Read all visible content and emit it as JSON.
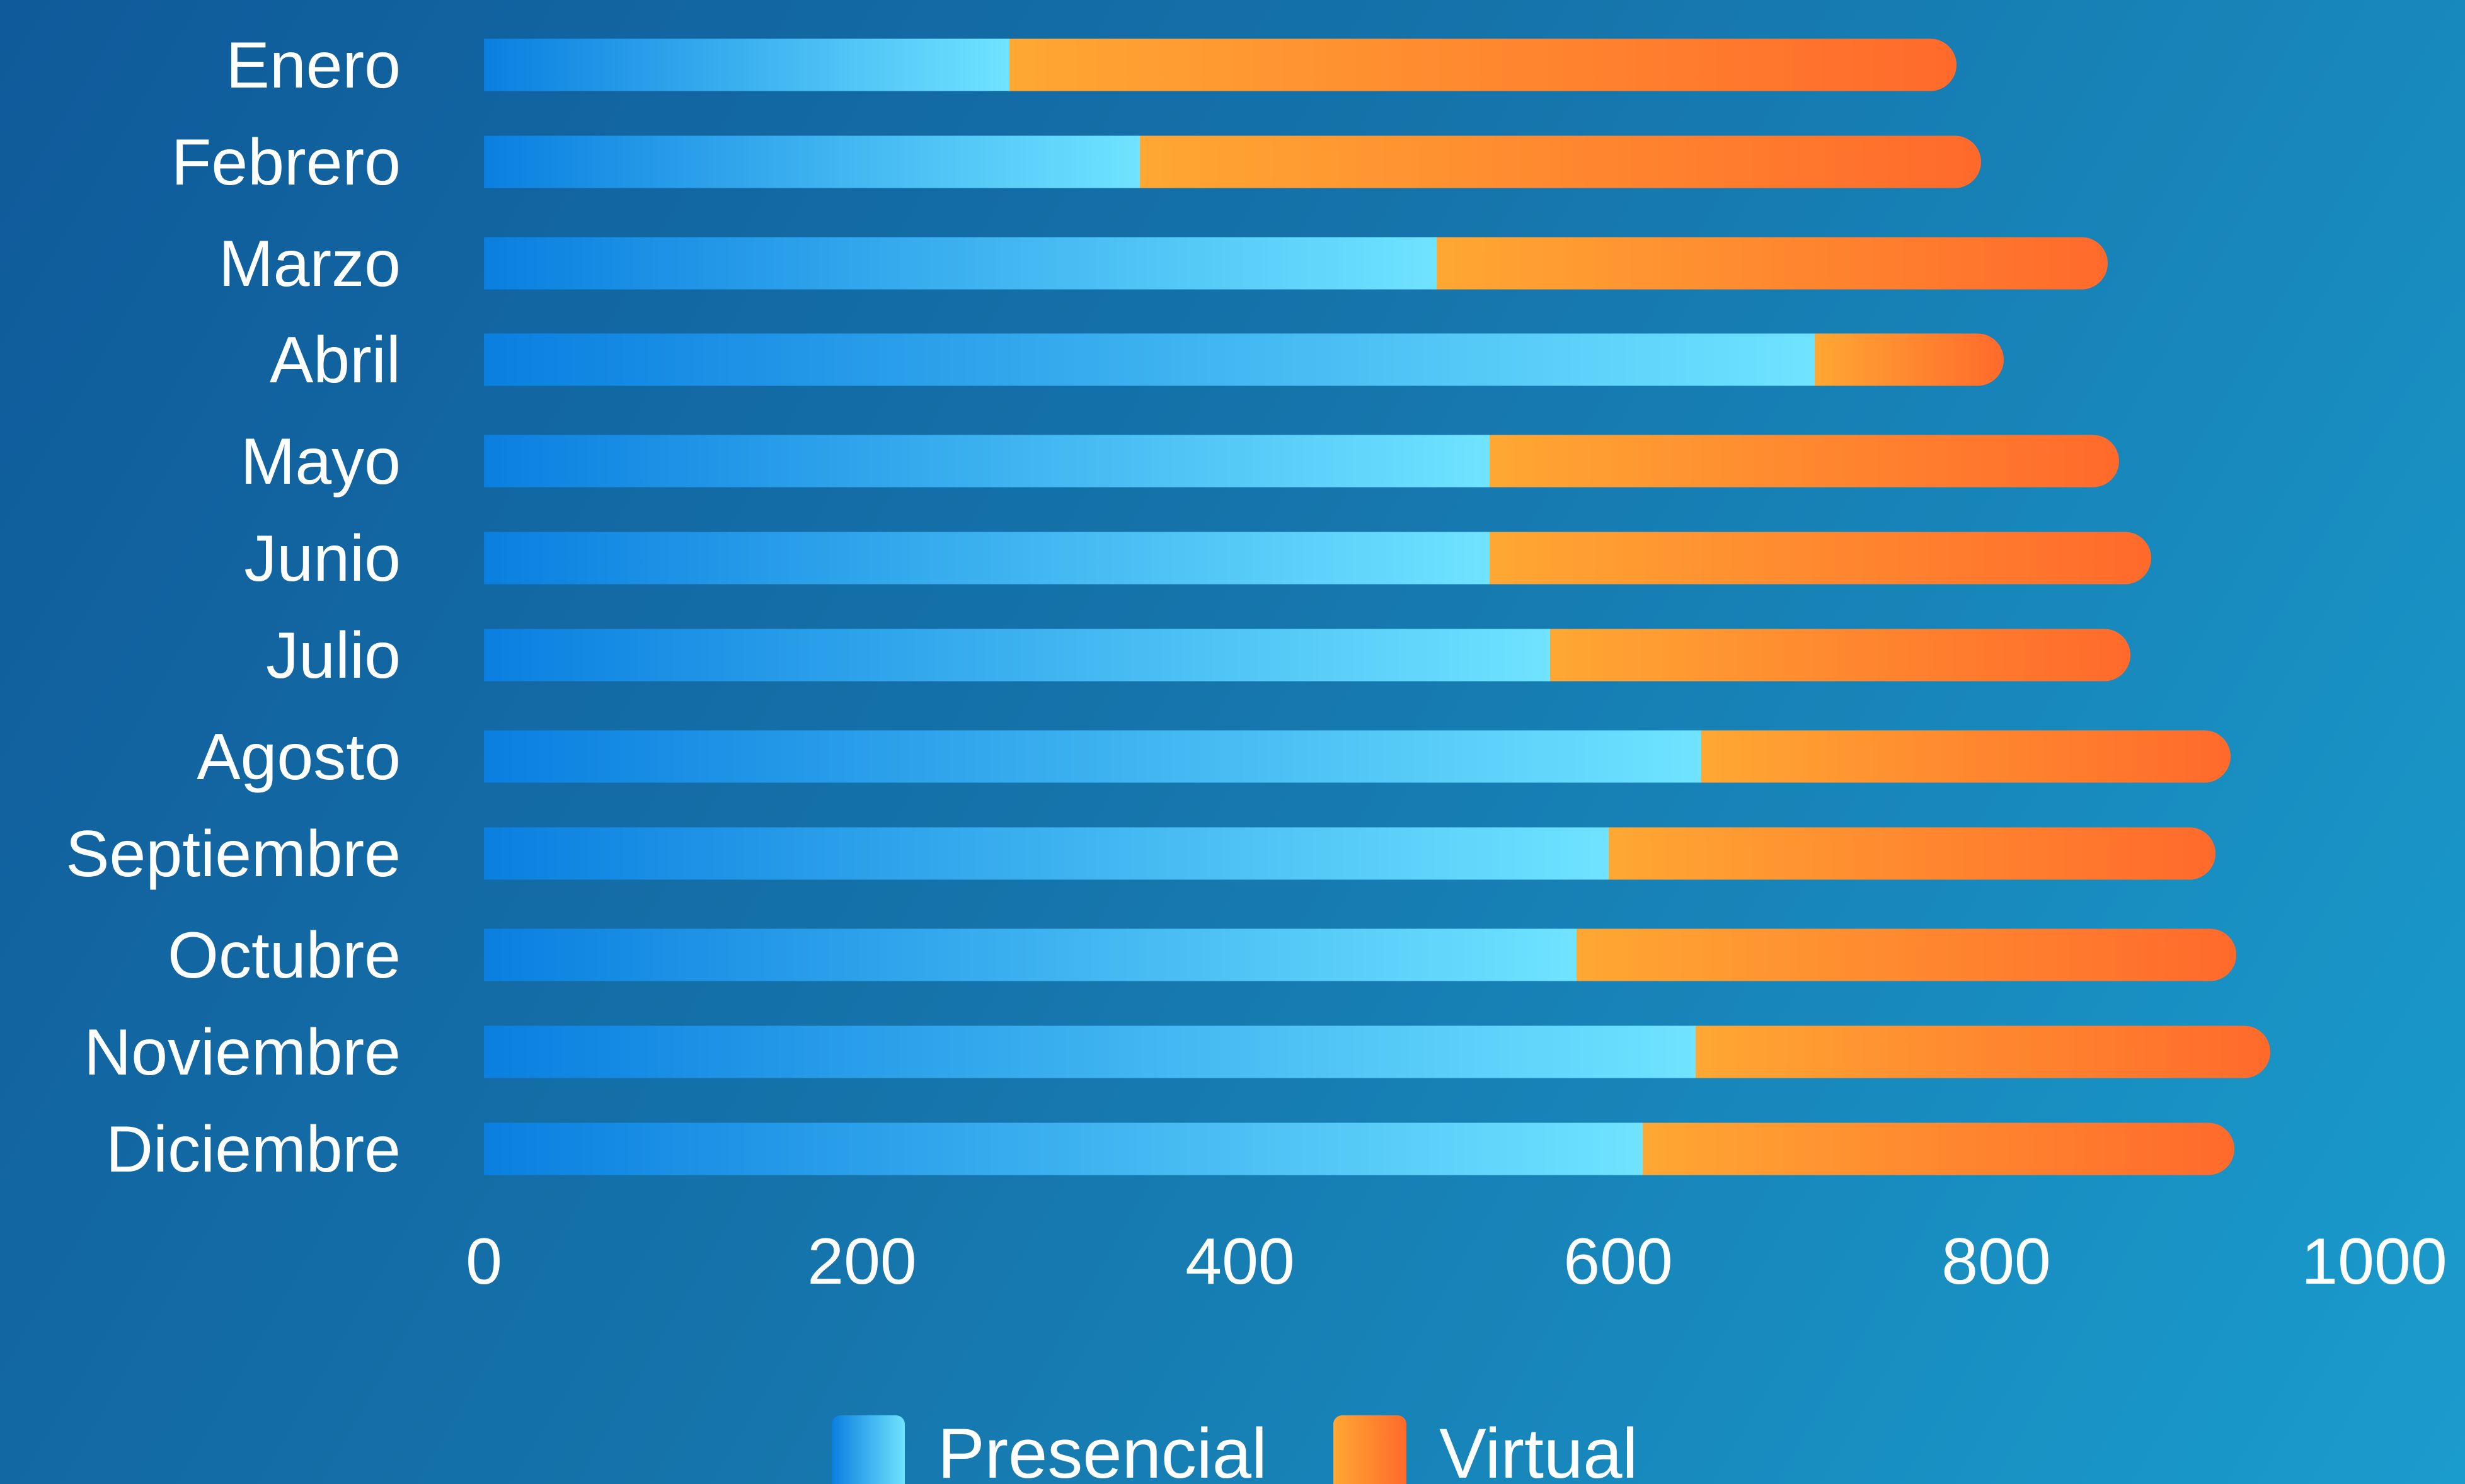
{
  "chart_data": {
    "type": "bar",
    "orientation": "horizontal",
    "stacked": true,
    "categories": [
      "Enero",
      "Febrero",
      "Marzo",
      "Abril",
      "Mayo",
      "Junio",
      "Julio",
      "Agosto",
      "Septiembre",
      "Octubre",
      "Noviembre",
      "Diciembre"
    ],
    "series": [
      {
        "name": "Presencial",
        "values": [
          278,
          347,
          504,
          704,
          532,
          532,
          564,
          644,
          595,
          578,
          641,
          613
        ],
        "color_start": "#0a7fe0",
        "color_end": "#6fe3ff"
      },
      {
        "name": "Virtual",
        "values": [
          501,
          445,
          355,
          100,
          333,
          350,
          307,
          280,
          321,
          349,
          304,
          313
        ],
        "color_start": "#ffa733",
        "color_end": "#ff6a2b"
      }
    ],
    "xlim": [
      0,
      1000
    ],
    "xticks": [
      "0",
      "200",
      "400",
      "600",
      "800",
      "1000"
    ],
    "grid": false,
    "legend_position": "bottom"
  }
}
